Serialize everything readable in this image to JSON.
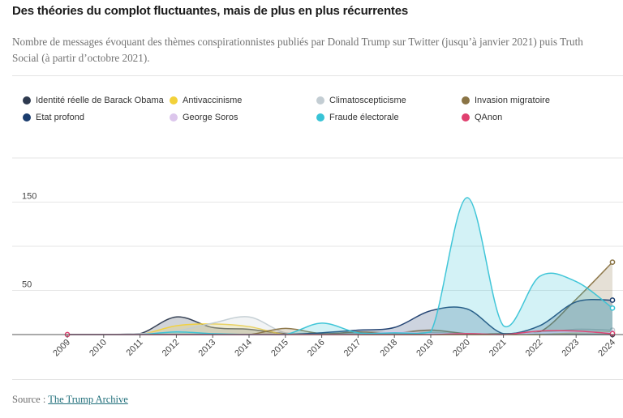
{
  "title": "Des théories du complot fluctuantes, mais de plus en plus récurrentes",
  "subtitle": "Nombre de messages évoquant des thèmes conspirationnistes publiés par Donald Trump sur Twitter (jusqu’à janvier 2021) puis Truth Social (à partir d’octobre 2021).",
  "source": {
    "prefix": "Source : ",
    "link_text": "The Trump Archive"
  },
  "chart_data": {
    "type": "area",
    "x": [
      "2009",
      "2010",
      "2011",
      "2012",
      "2013",
      "2014",
      "2015",
      "2016",
      "2017",
      "2018",
      "2019",
      "2020",
      "2021",
      "2022",
      "2023",
      "2024"
    ],
    "xlabel": "",
    "ylabel": "",
    "ylim": [
      0,
      200
    ],
    "yticks": [
      50,
      150
    ],
    "grid": true,
    "legend_position": "top",
    "series": [
      {
        "name": "Identité réelle de Barack Obama",
        "color": "#2e3a4f",
        "fill": true,
        "values": [
          0,
          0,
          1,
          20,
          8,
          6,
          1,
          0,
          0,
          0,
          0,
          0,
          0,
          0,
          0,
          0
        ]
      },
      {
        "name": "Antivaccinisme",
        "color": "#f2d13a",
        "fill": true,
        "values": [
          0,
          0,
          0,
          10,
          12,
          9,
          0,
          0,
          0,
          0,
          0,
          0,
          0,
          0,
          2,
          3
        ]
      },
      {
        "name": "Climatoscepticisme",
        "color": "#c3cdd3",
        "fill": true,
        "values": [
          0,
          0,
          1,
          4,
          13,
          20,
          2,
          2,
          1,
          1,
          2,
          1,
          0,
          2,
          6,
          5
        ]
      },
      {
        "name": "Invasion migratoire",
        "color": "#8a7445",
        "fill": true,
        "values": [
          0,
          0,
          0,
          0,
          0,
          0,
          7,
          1,
          3,
          2,
          5,
          1,
          1,
          3,
          40,
          82
        ]
      },
      {
        "name": "Etat profond",
        "color": "#1a3c6e",
        "fill": true,
        "values": [
          0,
          0,
          0,
          0,
          0,
          0,
          0,
          2,
          5,
          8,
          27,
          29,
          1,
          10,
          37,
          39
        ]
      },
      {
        "name": "George Soros",
        "color": "#dcc6ec",
        "fill": true,
        "values": [
          0,
          0,
          0,
          0,
          0,
          0,
          0,
          0,
          0,
          3,
          1,
          1,
          0,
          2,
          3,
          2
        ]
      },
      {
        "name": "Fraude électorale",
        "color": "#38c3d6",
        "fill": true,
        "values": [
          0,
          0,
          0,
          3,
          1,
          0,
          0,
          13,
          2,
          2,
          3,
          155,
          10,
          66,
          60,
          30
        ]
      },
      {
        "name": "QAnon",
        "color": "#e0406f",
        "fill": false,
        "values": [
          0,
          0,
          0,
          0,
          0,
          0,
          0,
          0,
          0,
          0,
          0,
          1,
          0,
          4,
          4,
          1
        ]
      }
    ]
  }
}
